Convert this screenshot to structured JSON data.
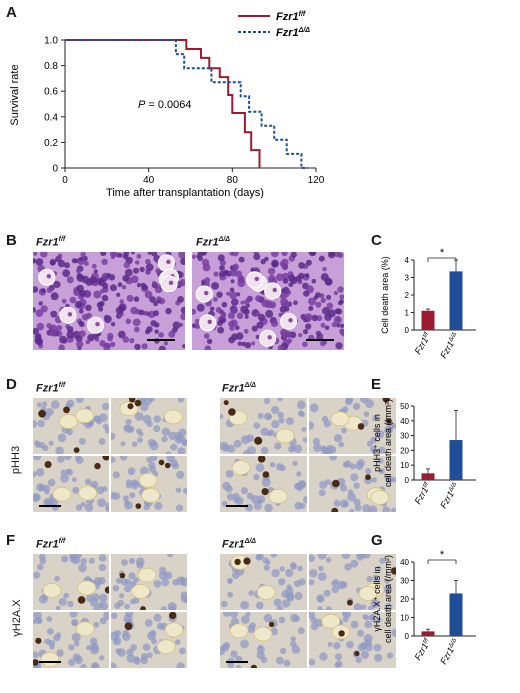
{
  "panels": {
    "A": "A",
    "B": "B",
    "C": "C",
    "D": "D",
    "E": "E",
    "F": "F",
    "G": "G"
  },
  "survival": {
    "ylabel": "Survival rate",
    "xlabel": "Time after transplantation (days)",
    "p_prefix": "P",
    "p_value": "= 0.0064",
    "legend": [
      "Fzr1",
      "Fzr1"
    ],
    "legend_sup": [
      "f/f",
      "Δ/Δ"
    ],
    "colors": {
      "ff": "#9b1b30",
      "dd": "#1f4e96"
    }
  },
  "micrographs": {
    "label_ff": "Fzr1",
    "sup_ff": "f/f",
    "label_dd": "Fzr1",
    "sup_dd": "Δ/Δ",
    "marker_D": "pHH3",
    "marker_F": "γH2A.X"
  },
  "chart_data": [
    {
      "type": "line",
      "panel": "A",
      "xlim": [
        0,
        120
      ],
      "ylim": [
        0,
        1.0
      ],
      "xticks": [
        0,
        40,
        80,
        120
      ],
      "yticks": [
        "0",
        "0.2",
        "0.4",
        "0.6",
        "0.8",
        "1.0"
      ],
      "series": [
        {
          "name": "Fzr1 f/f",
          "style": "solid",
          "color": "#9b1b30",
          "points": [
            [
              0,
              1.0
            ],
            [
              58,
              1.0
            ],
            [
              58,
              0.93
            ],
            [
              65,
              0.93
            ],
            [
              65,
              0.86
            ],
            [
              69,
              0.86
            ],
            [
              69,
              0.78
            ],
            [
              74,
              0.78
            ],
            [
              74,
              0.71
            ],
            [
              78,
              0.71
            ],
            [
              78,
              0.57
            ],
            [
              80,
              0.57
            ],
            [
              80,
              0.43
            ],
            [
              86,
              0.43
            ],
            [
              86,
              0.28
            ],
            [
              89,
              0.28
            ],
            [
              89,
              0.14
            ],
            [
              93,
              0.14
            ],
            [
              93,
              0.0
            ]
          ]
        },
        {
          "name": "Fzr1 Δ/Δ",
          "style": "dashed",
          "color": "#1f4e96",
          "points": [
            [
              0,
              1.0
            ],
            [
              53,
              1.0
            ],
            [
              53,
              0.89
            ],
            [
              57,
              0.89
            ],
            [
              57,
              0.78
            ],
            [
              70,
              0.78
            ],
            [
              70,
              0.67
            ],
            [
              84,
              0.67
            ],
            [
              84,
              0.56
            ],
            [
              88,
              0.56
            ],
            [
              88,
              0.44
            ],
            [
              94,
              0.44
            ],
            [
              94,
              0.33
            ],
            [
              100,
              0.33
            ],
            [
              100,
              0.22
            ],
            [
              106,
              0.22
            ],
            [
              106,
              0.11
            ],
            [
              113,
              0.11
            ],
            [
              113,
              0.0
            ],
            [
              116,
              0.0
            ]
          ]
        }
      ],
      "annotation": "P = 0.0064"
    },
    {
      "type": "bar",
      "panel": "C",
      "ylabel": "Cell death area (%)",
      "yticks": [
        "0",
        "1",
        "2",
        "3",
        "4"
      ],
      "ylim": [
        0,
        4
      ],
      "categories": [
        "Fzr1 f/f",
        "Fzr1 Δ/Δ"
      ],
      "values": [
        1.1,
        3.35
      ],
      "errors": [
        0.1,
        0.8
      ],
      "significance": "*"
    },
    {
      "type": "bar",
      "panel": "E",
      "ylabel_1": "pHH3⁺ cells in",
      "ylabel_2": "cell death area (/mm²)",
      "yticks": [
        "0",
        "10",
        "20",
        "30",
        "40",
        "50"
      ],
      "ylim": [
        0,
        50
      ],
      "categories": [
        "Fzr1 f/f",
        "Fzr1 Δ/Δ"
      ],
      "values": [
        4.5,
        27
      ],
      "errors": [
        3,
        20
      ],
      "significance": ""
    },
    {
      "type": "bar",
      "panel": "G",
      "ylabel_1": "γH2A.X⁺ cells in",
      "ylabel_2": "cell death area (/mm²)",
      "yticks": [
        "0",
        "10",
        "20",
        "30",
        "40"
      ],
      "ylim": [
        0,
        40
      ],
      "categories": [
        "Fzr1 f/f",
        "Fzr1 Δ/Δ"
      ],
      "values": [
        2.5,
        23
      ],
      "errors": [
        1.2,
        7
      ],
      "significance": "*"
    }
  ]
}
